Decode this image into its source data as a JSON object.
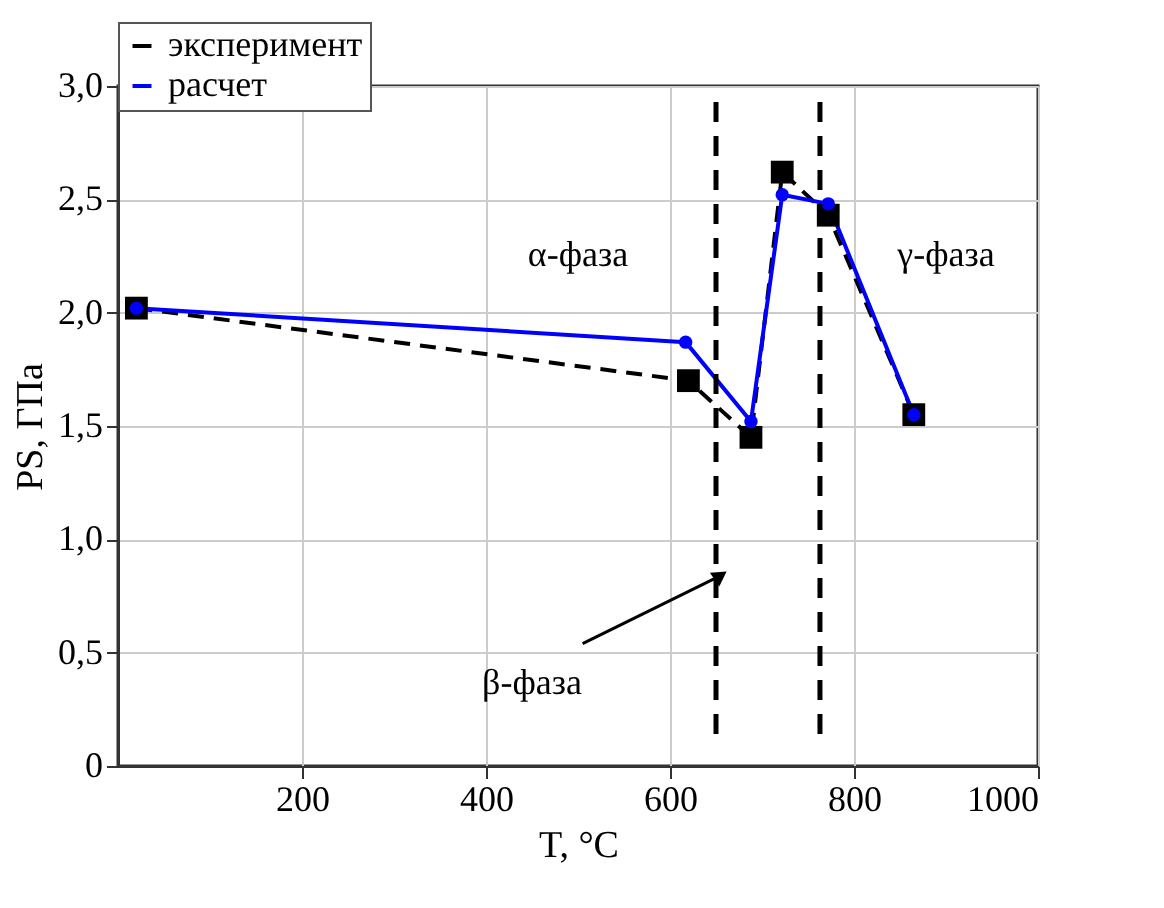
{
  "chart_data": {
    "type": "line",
    "xlabel": "T, °C",
    "ylabel": "PS, ГПа",
    "xlim": [
      0,
      1000
    ],
    "xticks": [
      200,
      400,
      600,
      800,
      1000
    ],
    "ylim": [
      0,
      3.0
    ],
    "yticks": [
      0,
      {
        "value": 0.5,
        "label": "0,5"
      },
      {
        "value": 1.0,
        "label": "1,0"
      },
      {
        "value": 1.5,
        "label": "1,5"
      },
      {
        "value": 2.0,
        "label": "2,0"
      },
      {
        "value": 2.5,
        "label": "2,5"
      },
      {
        "value": 3.0,
        "label": "3,0"
      }
    ],
    "grid": true,
    "legend": "top",
    "series": [
      {
        "name": "эксперимент",
        "color": "#000000",
        "marker": "square",
        "line_style": "dashed",
        "x": [
          20,
          620,
          688,
          722,
          772,
          865
        ],
        "values": [
          2.02,
          1.7,
          1.45,
          2.62,
          2.43,
          1.55
        ]
      },
      {
        "name": "расчет",
        "color": "#0000ff",
        "marker": "circle",
        "line_style": "solid",
        "x": [
          20,
          617,
          688,
          722,
          772,
          865
        ],
        "values": [
          2.02,
          1.87,
          1.52,
          2.52,
          2.48,
          1.55
        ]
      }
    ],
    "ref_lines": [
      {
        "axis": "x",
        "value": 650,
        "color": "#000000",
        "line_style": "dashed"
      },
      {
        "axis": "x",
        "value": 763,
        "color": "#000000",
        "line_style": "dashed"
      }
    ],
    "annotations": [
      "α-фаза",
      "β-фаза",
      "γ-фаза"
    ]
  }
}
